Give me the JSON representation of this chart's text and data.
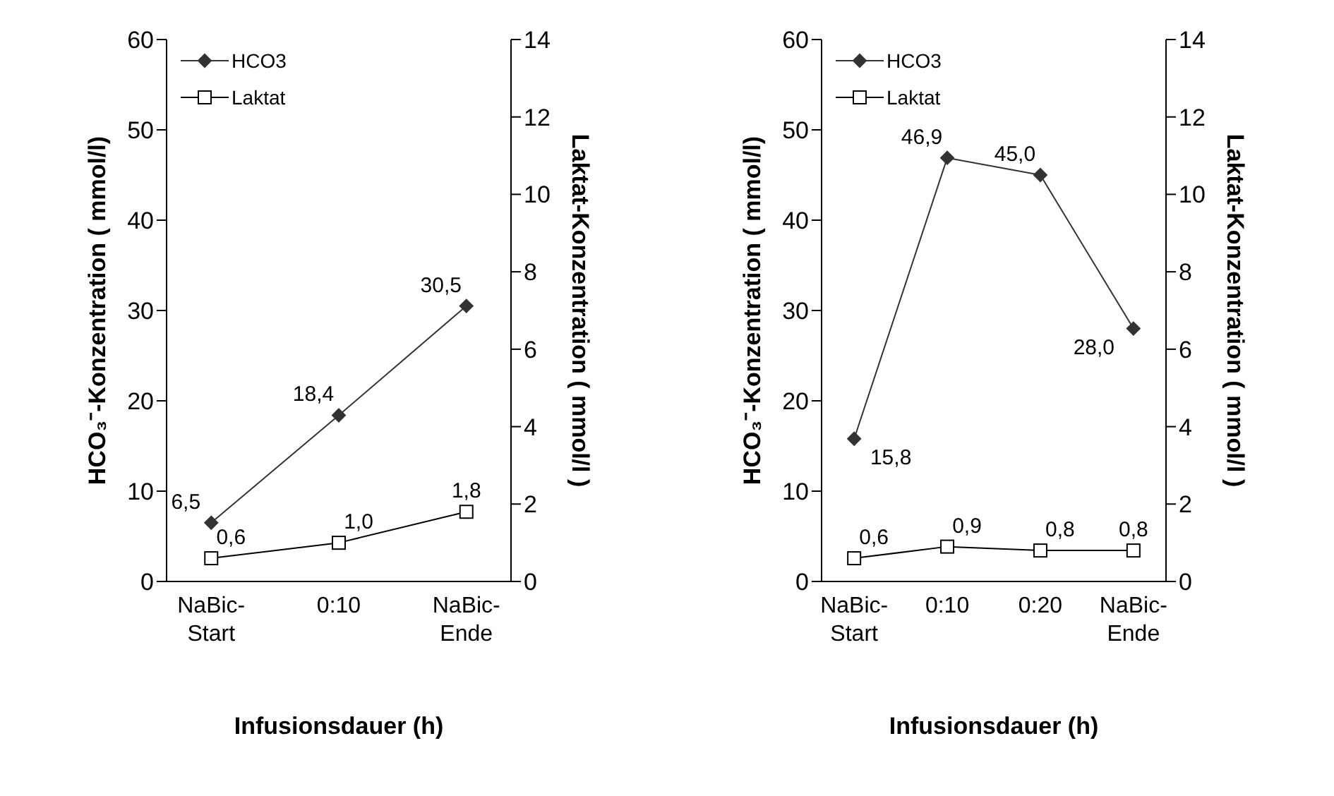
{
  "chart_data": [
    {
      "type": "line",
      "categories": [
        "NaBic-Start",
        "0:10",
        "NaBic-Ende"
      ],
      "xlabel": "Infusionsdauer (h)",
      "ylabel": "HCO₃⁻-Konzentration ( mmol/l)",
      "y2label": "Laktat-Konzentration ( mmol/l )",
      "ylim": [
        0,
        60
      ],
      "yticks": [
        0,
        10,
        20,
        30,
        40,
        50,
        60
      ],
      "y2lim": [
        0,
        14
      ],
      "y2ticks": [
        0,
        2,
        4,
        6,
        8,
        10,
        12,
        14
      ],
      "legend": "top left",
      "series": [
        {
          "name": "HCO3",
          "color": "#333333",
          "marker": "diamond",
          "values": [
            6.5,
            18.4,
            30.5
          ],
          "value_labels": [
            "6,5",
            "18,4",
            "30,5"
          ]
        },
        {
          "name": "Laktat",
          "color": "#000000",
          "marker": "square",
          "axis": "y2",
          "values": [
            0.6,
            1.0,
            1.8
          ],
          "value_labels": [
            "0,6",
            "1,0",
            "1,8"
          ]
        }
      ]
    },
    {
      "type": "line",
      "categories": [
        "NaBic-Start",
        "0:10",
        "0:20",
        "NaBic-Ende"
      ],
      "xlabel": "Infusionsdauer (h)",
      "ylabel": "HCO₃⁻-Konzentration ( mmol/l)",
      "y2label": "Laktat-Konzentration ( mmol/l )",
      "ylim": [
        0,
        60
      ],
      "yticks": [
        0,
        10,
        20,
        30,
        40,
        50,
        60
      ],
      "y2lim": [
        0,
        14
      ],
      "y2ticks": [
        0,
        2,
        4,
        6,
        8,
        10,
        12,
        14
      ],
      "legend": "top left",
      "series": [
        {
          "name": "HCO3",
          "color": "#333333",
          "marker": "diamond",
          "values": [
            15.8,
            46.9,
            45.0,
            28.0
          ],
          "value_labels": [
            "15,8",
            "46,9",
            "45,0",
            "28,0"
          ]
        },
        {
          "name": "Laktat",
          "color": "#000000",
          "marker": "square",
          "axis": "y2",
          "values": [
            0.6,
            0.9,
            0.8,
            0.8
          ],
          "value_labels": [
            "0,6",
            "0,9",
            "0,8",
            "0,8"
          ]
        }
      ]
    }
  ]
}
